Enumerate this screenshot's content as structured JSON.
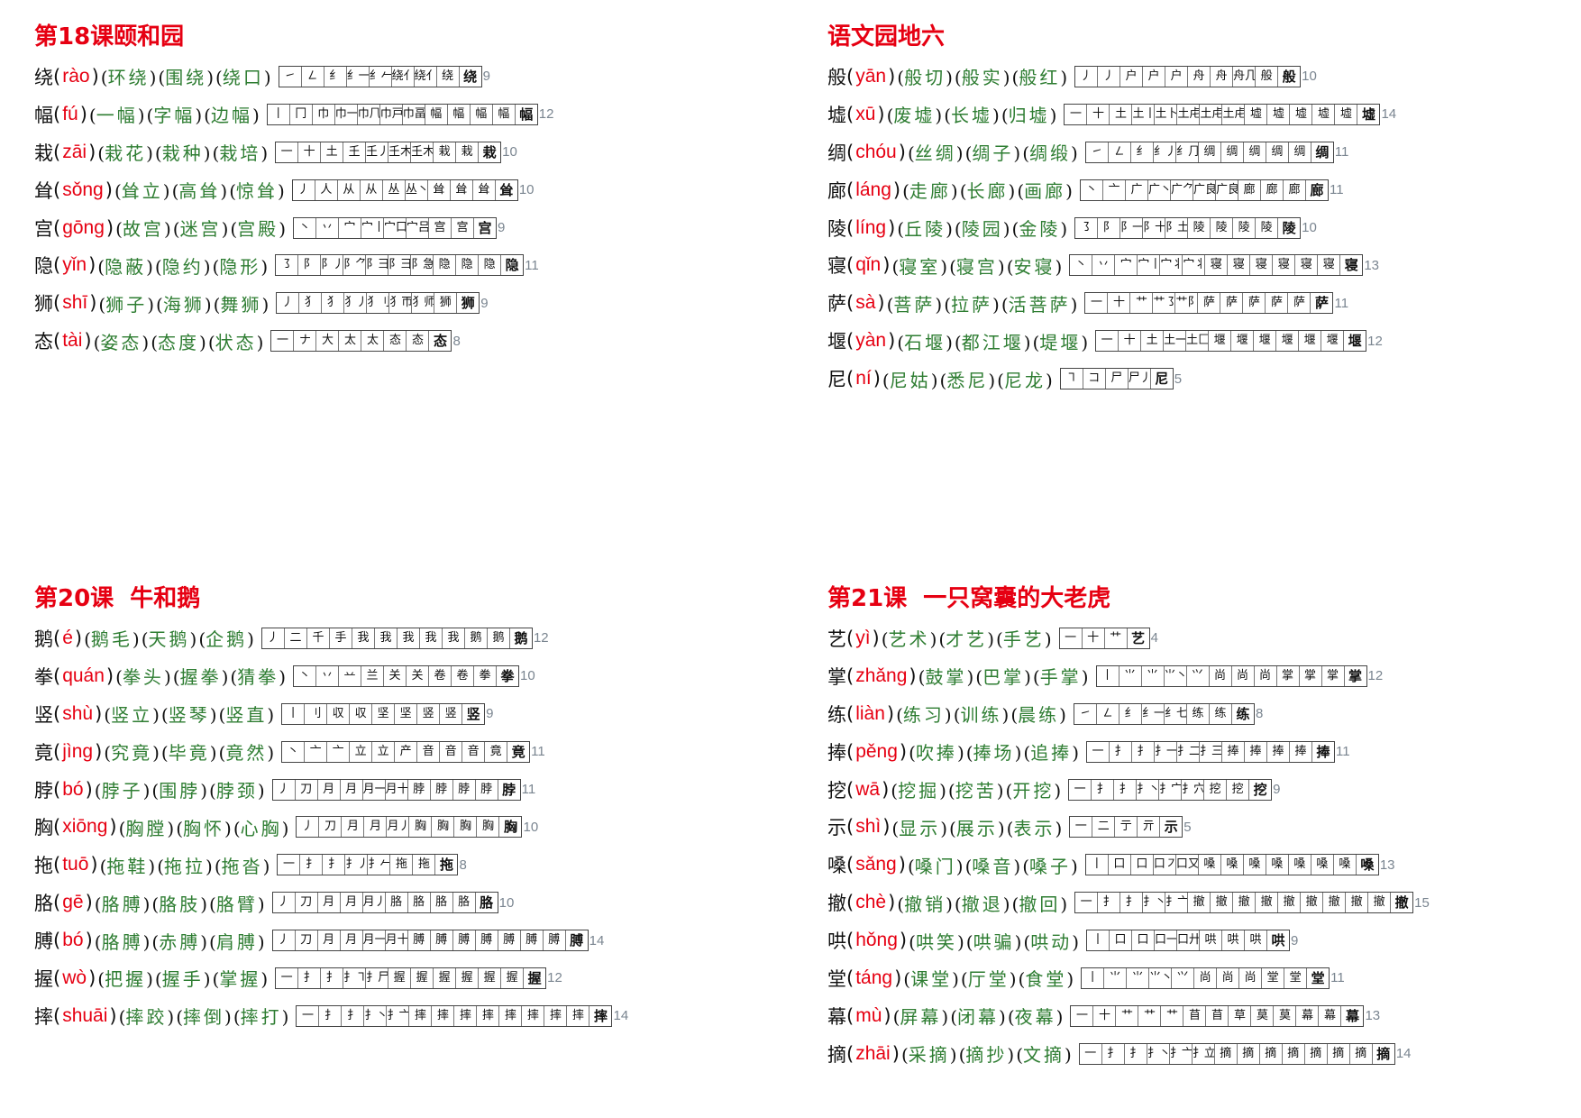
{
  "lessons": [
    {
      "title": "第18课颐和园",
      "items": [
        {
          "char": "绕",
          "pinyin": "rào",
          "words": [
            "环绕",
            "围绕",
            "绕口"
          ],
          "strokes": [
            "㇀",
            "㇜",
            "纟",
            "纟⼀",
            "纟𠂉",
            "绕⺅",
            "绕⺅",
            "绕",
            "绕"
          ],
          "count": "9"
        },
        {
          "char": "幅",
          "pinyin": "fú",
          "words": [
            "一幅",
            "字幅",
            "边幅"
          ],
          "strokes": [
            "丨",
            "冂",
            "巾",
            "巾一",
            "巾𠘨",
            "巾戸",
            "巾畐",
            "幅",
            "幅",
            "幅",
            "幅",
            "幅"
          ],
          "count": "12"
        },
        {
          "char": "栽",
          "pinyin": "zāi",
          "words": [
            "栽花",
            "栽种",
            "栽培"
          ],
          "strokes": [
            "一",
            "十",
            "土",
            "𡈼",
            "𡈼丿",
            "𡈼木",
            "𡈼木",
            "栽",
            "栽",
            "栽"
          ],
          "count": "10"
        },
        {
          "char": "耸",
          "pinyin": "sǒng",
          "words": [
            "耸立",
            "高耸",
            "惊耸"
          ],
          "strokes": [
            "丿",
            "人",
            "从",
            "从",
            "丛",
            "丛丶",
            "耸",
            "耸",
            "耸",
            "耸"
          ],
          "count": "10"
        },
        {
          "char": "宫",
          "pinyin": "gōng",
          "words": [
            "故宫",
            "迷宫",
            "宫殿"
          ],
          "strokes": [
            "丶",
            "丷",
            "宀",
            "宀丨",
            "宀口",
            "宀吕",
            "宫",
            "宫",
            "宫"
          ],
          "count": "9"
        },
        {
          "char": "隐",
          "pinyin": "yǐn",
          "words": [
            "隐蔽",
            "隐约",
            "隐形"
          ],
          "strokes": [
            "㇌",
            "阝",
            "阝丿",
            "阝⺈",
            "阝⺕",
            "阝⺕",
            "阝急",
            "隐",
            "隐",
            "隐",
            "隐"
          ],
          "count": "11"
        },
        {
          "char": "狮",
          "pinyin": "shī",
          "words": [
            "狮子",
            "海狮",
            "舞狮"
          ],
          "strokes": [
            "丿",
            "犭",
            "犭",
            "犭丿",
            "犭刂",
            "犭帀",
            "犭师",
            "狮",
            "狮"
          ],
          "count": "9"
        },
        {
          "char": "态",
          "pinyin": "tài",
          "words": [
            "姿态",
            "态度",
            "状态"
          ],
          "strokes": [
            "一",
            "ナ",
            "大",
            "太",
            "太",
            "态",
            "态",
            "态"
          ],
          "count": "8"
        }
      ]
    },
    {
      "title": "语文园地六",
      "items": [
        {
          "char": "般",
          "pinyin": "yān",
          "words": [
            "般切",
            "般实",
            "般红"
          ],
          "strokes": [
            "丿",
            "丿",
            "户",
            "户",
            "户",
            "舟",
            "舟",
            "舟几",
            "般",
            "般"
          ],
          "count": "10"
        },
        {
          "char": "墟",
          "pinyin": "xū",
          "words": [
            "废墟",
            "长墟",
            "归墟"
          ],
          "strokes": [
            "一",
            "十",
            "土",
            "土丨",
            "土卜",
            "土虍",
            "土虍",
            "土虍",
            "墟",
            "墟",
            "墟",
            "墟",
            "墟",
            "墟"
          ],
          "count": "14"
        },
        {
          "char": "绸",
          "pinyin": "chóu",
          "words": [
            "丝绸",
            "绸子",
            "绸缎"
          ],
          "strokes": [
            "㇀",
            "㇜",
            "纟",
            "纟丿",
            "纟⺆",
            "绸",
            "绸",
            "绸",
            "绸",
            "绸",
            "绸"
          ],
          "count": "11"
        },
        {
          "char": "廊",
          "pinyin": "láng",
          "words": [
            "走廊",
            "长廊",
            "画廊"
          ],
          "strokes": [
            "丶",
            "亠",
            "广",
            "广丶",
            "广⺈",
            "广良",
            "广良",
            "廊",
            "廊",
            "廊",
            "廊"
          ],
          "count": "11"
        },
        {
          "char": "陵",
          "pinyin": "líng",
          "words": [
            "丘陵",
            "陵园",
            "金陵"
          ],
          "strokes": [
            "㇌",
            "阝",
            "阝一",
            "阝十",
            "阝土",
            "陵",
            "陵",
            "陵",
            "陵",
            "陵"
          ],
          "count": "10"
        },
        {
          "char": "寝",
          "pinyin": "qǐn",
          "words": [
            "寝室",
            "寝宫",
            "安寝"
          ],
          "strokes": [
            "丶",
            "丷",
            "宀",
            "宀丨",
            "宀丬",
            "宀丬",
            "寝",
            "寝",
            "寝",
            "寝",
            "寝",
            "寝",
            "寝"
          ],
          "count": "13"
        },
        {
          "char": "萨",
          "pinyin": "sà",
          "words": [
            "菩萨",
            "拉萨",
            "活菩萨"
          ],
          "strokes": [
            "一",
            "十",
            "艹",
            "艹㇌",
            "艹阝",
            "萨",
            "萨",
            "萨",
            "萨",
            "萨",
            "萨"
          ],
          "count": "11"
        },
        {
          "char": "堰",
          "pinyin": "yàn",
          "words": [
            "石堰",
            "都江堰",
            "堤堰"
          ],
          "strokes": [
            "一",
            "十",
            "土",
            "土一",
            "土匚",
            "堰",
            "堰",
            "堰",
            "堰",
            "堰",
            "堰",
            "堰"
          ],
          "count": "12"
        },
        {
          "char": "尼",
          "pinyin": "ní",
          "words": [
            "尼姑",
            "悉尼",
            "尼龙"
          ],
          "strokes": [
            "㇕",
            "コ",
            "尸",
            "尸丿",
            "尼"
          ],
          "count": "5"
        }
      ]
    },
    {
      "title": "第20课  牛和鹅",
      "items": [
        {
          "char": "鹅",
          "pinyin": "é",
          "words": [
            "鹅毛",
            "天鹅",
            "企鹅"
          ],
          "strokes": [
            "丿",
            "二",
            "千",
            "手",
            "我",
            "我",
            "我",
            "我",
            "我",
            "鹅",
            "鹅",
            "鹅"
          ],
          "count": "12"
        },
        {
          "char": "拳",
          "pinyin": "quán",
          "words": [
            "拳头",
            "握拳",
            "猜拳"
          ],
          "strokes": [
            "丶",
            "丷",
            "䒑",
            "兰",
            "关",
            "关",
            "卷",
            "卷",
            "拳",
            "拳"
          ],
          "count": "10"
        },
        {
          "char": "竖",
          "pinyin": "shù",
          "words": [
            "竖立",
            "竖琴",
            "竖直"
          ],
          "strokes": [
            "丨",
            "刂",
            "収",
            "収",
            "坚",
            "坚",
            "竖",
            "竖",
            "竖"
          ],
          "count": "9"
        },
        {
          "char": "竟",
          "pinyin": "jìng",
          "words": [
            "究竟",
            "毕竟",
            "竟然"
          ],
          "strokes": [
            "丶",
            "亠",
            "亠",
            "立",
            "立",
            "产",
            "音",
            "音",
            "音",
            "竟",
            "竟"
          ],
          "count": "11"
        },
        {
          "char": "脖",
          "pinyin": "bó",
          "words": [
            "脖子",
            "围脖",
            "脖颈"
          ],
          "strokes": [
            "丿",
            "刀",
            "月",
            "月",
            "月一",
            "月十",
            "脖",
            "脖",
            "脖",
            "脖",
            "脖"
          ],
          "count": "11"
        },
        {
          "char": "胸",
          "pinyin": "xiōng",
          "words": [
            "胸膛",
            "胸怀",
            "心胸"
          ],
          "strokes": [
            "丿",
            "刀",
            "月",
            "月",
            "月丿",
            "胸",
            "胸",
            "胸",
            "胸",
            "胸"
          ],
          "count": "10"
        },
        {
          "char": "拖",
          "pinyin": "tuō",
          "words": [
            "拖鞋",
            "拖拉",
            "拖沓"
          ],
          "strokes": [
            "一",
            "扌",
            "扌",
            "扌丿",
            "扌𠂉",
            "拖",
            "拖",
            "拖"
          ],
          "count": "8"
        },
        {
          "char": "胳",
          "pinyin": "gē",
          "words": [
            "胳膊",
            "胳肢",
            "胳臂"
          ],
          "strokes": [
            "丿",
            "刀",
            "月",
            "月",
            "月丿",
            "胳",
            "胳",
            "胳",
            "胳",
            "胳"
          ],
          "count": "10"
        },
        {
          "char": "膊",
          "pinyin": "bó",
          "words": [
            "胳膊",
            "赤膊",
            "肩膊"
          ],
          "strokes": [
            "丿",
            "刀",
            "月",
            "月",
            "月一",
            "月十",
            "膊",
            "膊",
            "膊",
            "膊",
            "膊",
            "膊",
            "膊",
            "膊"
          ],
          "count": "14"
        },
        {
          "char": "握",
          "pinyin": "wò",
          "words": [
            "把握",
            "握手",
            "掌握"
          ],
          "strokes": [
            "一",
            "扌",
            "扌",
            "扌㇕",
            "扌尸",
            "握",
            "握",
            "握",
            "握",
            "握",
            "握",
            "握"
          ],
          "count": "12"
        },
        {
          "char": "摔",
          "pinyin": "shuāi",
          "words": [
            "摔跤",
            "摔倒",
            "摔打"
          ],
          "strokes": [
            "一",
            "扌",
            "扌",
            "扌丶",
            "扌亠",
            "摔",
            "摔",
            "摔",
            "摔",
            "摔",
            "摔",
            "摔",
            "摔",
            "摔"
          ],
          "count": "14"
        }
      ]
    },
    {
      "title": "第21课  一只窝囊的大老虎",
      "items": [
        {
          "char": "艺",
          "pinyin": "yì",
          "words": [
            "艺术",
            "才艺",
            "手艺"
          ],
          "strokes": [
            "一",
            "十",
            "艹",
            "艺"
          ],
          "count": "4"
        },
        {
          "char": "掌",
          "pinyin": "zhǎng",
          "words": [
            "鼓掌",
            "巴掌",
            "手掌"
          ],
          "strokes": [
            "丨",
            "⺌",
            "⺌",
            "⺌丶",
            "⺍",
            "尚",
            "尚",
            "尚",
            "掌",
            "掌",
            "掌",
            "掌"
          ],
          "count": "12"
        },
        {
          "char": "练",
          "pinyin": "liàn",
          "words": [
            "练习",
            "训练",
            "晨练"
          ],
          "strokes": [
            "㇀",
            "㇜",
            "纟",
            "纟一",
            "纟七",
            "练",
            "练",
            "练"
          ],
          "count": "8"
        },
        {
          "char": "捧",
          "pinyin": "pěng",
          "words": [
            "吹捧",
            "捧场",
            "追捧"
          ],
          "strokes": [
            "一",
            "扌",
            "扌",
            "扌一",
            "扌二",
            "扌三",
            "捧",
            "捧",
            "捧",
            "捧",
            "捧"
          ],
          "count": "11"
        },
        {
          "char": "挖",
          "pinyin": "wā",
          "words": [
            "挖掘",
            "挖苦",
            "开挖"
          ],
          "strokes": [
            "一",
            "扌",
            "扌",
            "扌丶",
            "扌宀",
            "扌穴",
            "挖",
            "挖",
            "挖"
          ],
          "count": "9"
        },
        {
          "char": "示",
          "pinyin": "shì",
          "words": [
            "显示",
            "展示",
            "表示"
          ],
          "strokes": [
            "一",
            "二",
            "亍",
            "亓",
            "示"
          ],
          "count": "5"
        },
        {
          "char": "嗓",
          "pinyin": "sǎng",
          "words": [
            "嗓门",
            "嗓音",
            "嗓子"
          ],
          "strokes": [
            "丨",
            "口",
            "口",
            "口㇇",
            "口又",
            "嗓",
            "嗓",
            "嗓",
            "嗓",
            "嗓",
            "嗓",
            "嗓",
            "嗓"
          ],
          "count": "13"
        },
        {
          "char": "撤",
          "pinyin": "chè",
          "words": [
            "撤销",
            "撤退",
            "撤回"
          ],
          "strokes": [
            "一",
            "扌",
            "扌",
            "扌丶",
            "扌亠",
            "撤",
            "撤",
            "撤",
            "撤",
            "撤",
            "撤",
            "撤",
            "撤",
            "撤",
            "撤"
          ],
          "count": "15"
        },
        {
          "char": "哄",
          "pinyin": "hǒng",
          "words": [
            "哄笑",
            "哄骗",
            "哄动"
          ],
          "strokes": [
            "丨",
            "口",
            "口",
            "口一",
            "口廾",
            "哄",
            "哄",
            "哄",
            "哄"
          ],
          "count": "9"
        },
        {
          "char": "堂",
          "pinyin": "táng",
          "words": [
            "课堂",
            "厅堂",
            "食堂"
          ],
          "strokes": [
            "丨",
            "⺌",
            "⺌",
            "⺌丶",
            "⺍",
            "尚",
            "尚",
            "尚",
            "堂",
            "堂",
            "堂"
          ],
          "count": "11"
        },
        {
          "char": "幕",
          "pinyin": "mù",
          "words": [
            "屏幕",
            "闭幕",
            "夜幕"
          ],
          "strokes": [
            "一",
            "十",
            "艹",
            "艹",
            "艹",
            "苜",
            "苜",
            "草",
            "莫",
            "莫",
            "幕",
            "幕",
            "幕"
          ],
          "count": "13"
        },
        {
          "char": "摘",
          "pinyin": "zhāi",
          "words": [
            "采摘",
            "摘抄",
            "文摘"
          ],
          "strokes": [
            "一",
            "扌",
            "扌",
            "扌丶",
            "扌亠",
            "扌立",
            "摘",
            "摘",
            "摘",
            "摘",
            "摘",
            "摘",
            "摘",
            "摘"
          ],
          "count": "14"
        }
      ]
    }
  ]
}
